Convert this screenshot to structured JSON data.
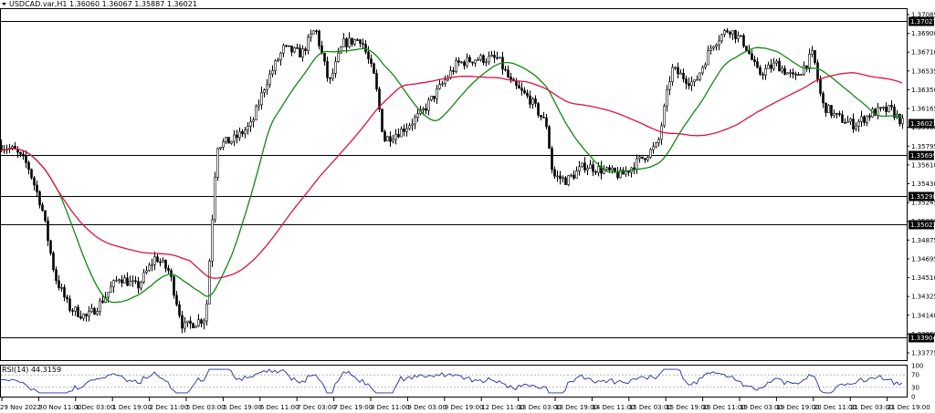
{
  "chart_data": [
    {
      "type": "candlestick",
      "title": "USDCAD.var,H1 1.36060 1.36067 1.35887 1.36021",
      "current_price": 1.36021,
      "ylim": [
        1.3368,
        1.3714
      ],
      "x_tick_labels": [
        "29 Nov 2022",
        "30 Nov 11:00",
        "1 Dec 03:00",
        "1 Dec 19:00",
        "2 Dec 11:00",
        "5 Dec 03:00",
        "5 Dec 19:00",
        "6 Dec 11:00",
        "7 Dec 03:00",
        "7 Dec 19:00",
        "8 Dec 11:00",
        "9 Dec 03:00",
        "9 Dec 19:00",
        "12 Dec 11:00",
        "13 Dec 03:00",
        "13 Dec 19:00",
        "14 Dec 11:00",
        "15 Dec 03:00",
        "15 Dec 19:00",
        "16 Dec 11:00",
        "19 Dec 03:00",
        "19 Dec 19:00",
        "20 Dec 11:00",
        "21 Dec 03:00",
        "21 Dec 19:00"
      ],
      "y_tick_labels": [
        "1.37085",
        "1.36900",
        "1.36710",
        "1.36535",
        "1.36350",
        "1.36165",
        "1.35980",
        "1.35795",
        "1.35610",
        "1.35430",
        "1.35245",
        "1.35060",
        "1.34875",
        "1.34695",
        "1.34510",
        "1.34325",
        "1.34140",
        "1.33960",
        "1.33775"
      ],
      "horizontal_levels": [
        {
          "price": 1.37027,
          "label": "1.37027"
        },
        {
          "price": 1.35699,
          "label": "1.35699"
        },
        {
          "price": 1.35298,
          "label": "1.35298"
        },
        {
          "price": 1.35022,
          "label": "1.35022"
        },
        {
          "price": 1.33904,
          "label": "1.33904"
        }
      ],
      "price_tag": {
        "price": 1.36021,
        "label": "1.36021"
      },
      "waypoints": [
        {
          "x": 0,
          "price": 1.358
        },
        {
          "x": 15,
          "price": 1.3575
        },
        {
          "x": 30,
          "price": 1.356
        },
        {
          "x": 45,
          "price": 1.352
        },
        {
          "x": 60,
          "price": 1.345
        },
        {
          "x": 75,
          "price": 1.342
        },
        {
          "x": 95,
          "price": 1.341
        },
        {
          "x": 110,
          "price": 1.3425
        },
        {
          "x": 130,
          "price": 1.345
        },
        {
          "x": 150,
          "price": 1.344
        },
        {
          "x": 170,
          "price": 1.347
        },
        {
          "x": 185,
          "price": 1.3455
        },
        {
          "x": 200,
          "price": 1.34
        },
        {
          "x": 225,
          "price": 1.341
        },
        {
          "x": 237,
          "price": 1.358
        },
        {
          "x": 255,
          "price": 1.3585
        },
        {
          "x": 275,
          "price": 1.36
        },
        {
          "x": 290,
          "price": 1.364
        },
        {
          "x": 310,
          "price": 1.3675
        },
        {
          "x": 330,
          "price": 1.367
        },
        {
          "x": 345,
          "price": 1.3695
        },
        {
          "x": 360,
          "price": 1.364
        },
        {
          "x": 375,
          "price": 1.368
        },
        {
          "x": 395,
          "price": 1.3685
        },
        {
          "x": 410,
          "price": 1.3645
        },
        {
          "x": 420,
          "price": 1.3585
        },
        {
          "x": 440,
          "price": 1.3595
        },
        {
          "x": 460,
          "price": 1.361
        },
        {
          "x": 480,
          "price": 1.3635
        },
        {
          "x": 500,
          "price": 1.366
        },
        {
          "x": 520,
          "price": 1.3665
        },
        {
          "x": 545,
          "price": 1.3665
        },
        {
          "x": 560,
          "price": 1.364
        },
        {
          "x": 580,
          "price": 1.3625
        },
        {
          "x": 598,
          "price": 1.36
        },
        {
          "x": 605,
          "price": 1.355
        },
        {
          "x": 620,
          "price": 1.3545
        },
        {
          "x": 640,
          "price": 1.356
        },
        {
          "x": 660,
          "price": 1.3555
        },
        {
          "x": 680,
          "price": 1.355
        },
        {
          "x": 700,
          "price": 1.3565
        },
        {
          "x": 720,
          "price": 1.358
        },
        {
          "x": 735,
          "price": 1.3655
        },
        {
          "x": 760,
          "price": 1.364
        },
        {
          "x": 780,
          "price": 1.368
        },
        {
          "x": 798,
          "price": 1.3695
        },
        {
          "x": 815,
          "price": 1.368
        },
        {
          "x": 830,
          "price": 1.365
        },
        {
          "x": 850,
          "price": 1.366
        },
        {
          "x": 870,
          "price": 1.3645
        },
        {
          "x": 890,
          "price": 1.367
        },
        {
          "x": 900,
          "price": 1.362
        },
        {
          "x": 915,
          "price": 1.3608
        },
        {
          "x": 935,
          "price": 1.36
        },
        {
          "x": 955,
          "price": 1.3612
        },
        {
          "x": 975,
          "price": 1.3615
        },
        {
          "x": 988,
          "price": 1.3602
        }
      ],
      "series": [
        {
          "name": "",
          "role": "fast-moving-average",
          "color": "#118811"
        },
        {
          "name": "",
          "role": "slow-moving-average",
          "color": "#dd1144"
        }
      ]
    },
    {
      "type": "line",
      "title": "RSI(14) 44.3159",
      "ylim": [
        0,
        100
      ],
      "y_tick_labels": [
        "100",
        "70",
        "30",
        "0"
      ],
      "levels": [
        70,
        30
      ],
      "current_value": 44.3159,
      "color": "#2a2aa8"
    }
  ]
}
